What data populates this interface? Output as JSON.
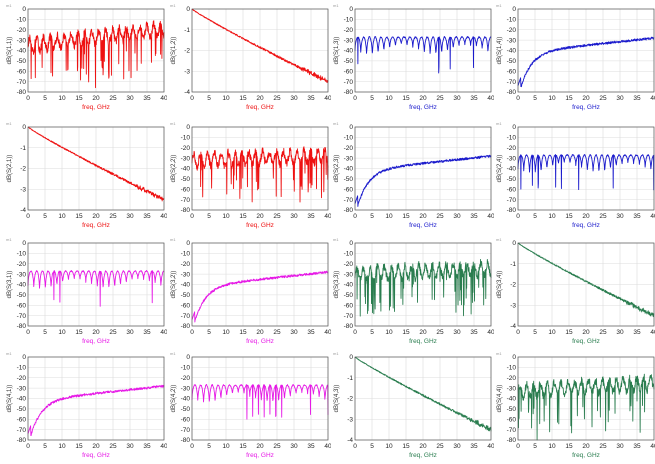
{
  "colors": {
    "red": "#ee1111",
    "blue": "#1a1acc",
    "magenta": "#e619e6",
    "green": "#2a7d4f"
  },
  "marker_tag": "m1",
  "chart_data": [
    {
      "type": "line",
      "id": "S11",
      "ylabel": "dB(S(1,1))",
      "xlabel": "freq, GHz",
      "color": "red",
      "xlim": [
        0,
        40
      ],
      "ylim": [
        -80,
        0
      ],
      "xticks": [
        0,
        5,
        10,
        15,
        20,
        25,
        30,
        35,
        40
      ],
      "yticks": [
        0,
        -10,
        -20,
        -30,
        -40,
        -50,
        -60,
        -70,
        -80
      ],
      "pattern": "reflection",
      "start": -35,
      "end": -20
    },
    {
      "type": "line",
      "id": "S12",
      "ylabel": "dB(S(1,2))",
      "xlabel": "freq, GHz",
      "color": "red",
      "xlim": [
        0,
        40
      ],
      "ylim": [
        -4,
        0
      ],
      "xticks": [
        0,
        5,
        10,
        15,
        20,
        25,
        30,
        35,
        40
      ],
      "yticks": [
        0,
        -1,
        -2,
        -3,
        -4
      ],
      "pattern": "insertion",
      "start": 0,
      "end": -3.5
    },
    {
      "type": "line",
      "id": "S13",
      "ylabel": "dB(S(1,3))",
      "xlabel": "freq, GHz",
      "color": "blue",
      "xlim": [
        0,
        40
      ],
      "ylim": [
        -80,
        0
      ],
      "xticks": [
        0,
        5,
        10,
        15,
        20,
        25,
        30,
        35,
        40
      ],
      "yticks": [
        0,
        -10,
        -20,
        -30,
        -40,
        -50,
        -60,
        -70,
        -80
      ],
      "pattern": "scallop",
      "start": -30,
      "end": -30
    },
    {
      "type": "line",
      "id": "S14",
      "ylabel": "dB(S(1,4))",
      "xlabel": "freq, GHz",
      "color": "blue",
      "xlim": [
        0,
        40
      ],
      "ylim": [
        -80,
        0
      ],
      "xticks": [
        0,
        5,
        10,
        15,
        20,
        25,
        30,
        35,
        40
      ],
      "yticks": [
        0,
        -10,
        -20,
        -30,
        -40,
        -50,
        -60,
        -70,
        -80
      ],
      "pattern": "rising",
      "start": -75,
      "end": -28
    },
    {
      "type": "line",
      "id": "S21",
      "ylabel": "dB(S(2,1))",
      "xlabel": "freq, GHz",
      "color": "red",
      "xlim": [
        0,
        40
      ],
      "ylim": [
        -4,
        0
      ],
      "xticks": [
        0,
        5,
        10,
        15,
        20,
        25,
        30,
        35,
        40
      ],
      "yticks": [
        0,
        -1,
        -2,
        -3,
        -4
      ],
      "pattern": "insertion",
      "start": 0,
      "end": -3.5
    },
    {
      "type": "line",
      "id": "S22",
      "ylabel": "dB(S(2,2))",
      "xlabel": "freq, GHz",
      "color": "red",
      "xlim": [
        0,
        40
      ],
      "ylim": [
        -80,
        0
      ],
      "xticks": [
        0,
        5,
        10,
        15,
        20,
        25,
        30,
        35,
        40
      ],
      "yticks": [
        0,
        -10,
        -20,
        -30,
        -40,
        -50,
        -60,
        -70,
        -80
      ],
      "pattern": "reflection",
      "start": -32,
      "end": -28
    },
    {
      "type": "line",
      "id": "S23",
      "ylabel": "dB(S(2,3))",
      "xlabel": "freq, GHz",
      "color": "blue",
      "xlim": [
        0,
        40
      ],
      "ylim": [
        -80,
        0
      ],
      "xticks": [
        0,
        5,
        10,
        15,
        20,
        25,
        30,
        35,
        40
      ],
      "yticks": [
        0,
        -10,
        -20,
        -30,
        -40,
        -50,
        -60,
        -70,
        -80
      ],
      "pattern": "rising",
      "start": -75,
      "end": -30
    },
    {
      "type": "line",
      "id": "S24",
      "ylabel": "dB(S(2,4))",
      "xlabel": "freq, GHz",
      "color": "blue",
      "xlim": [
        0,
        40
      ],
      "ylim": [
        -80,
        0
      ],
      "xticks": [
        0,
        5,
        10,
        15,
        20,
        25,
        30,
        35,
        40
      ],
      "yticks": [
        0,
        -10,
        -20,
        -30,
        -40,
        -50,
        -60,
        -70,
        -80
      ],
      "pattern": "scallop",
      "start": -30,
      "end": -30
    },
    {
      "type": "line",
      "id": "S31",
      "ylabel": "dB(S(3,1))",
      "xlabel": "freq, GHz",
      "color": "magenta",
      "xlim": [
        0,
        40
      ],
      "ylim": [
        -80,
        0
      ],
      "xticks": [
        0,
        5,
        10,
        15,
        20,
        25,
        30,
        35,
        40
      ],
      "yticks": [
        0,
        -10,
        -20,
        -30,
        -40,
        -50,
        -60,
        -70,
        -80
      ],
      "pattern": "scallop",
      "start": -30,
      "end": -30
    },
    {
      "type": "line",
      "id": "S32",
      "ylabel": "dB(S(3,2))",
      "xlabel": "freq, GHz",
      "color": "magenta",
      "xlim": [
        0,
        40
      ],
      "ylim": [
        -80,
        0
      ],
      "xticks": [
        0,
        5,
        10,
        15,
        20,
        25,
        30,
        35,
        40
      ],
      "yticks": [
        0,
        -10,
        -20,
        -30,
        -40,
        -50,
        -60,
        -70,
        -80
      ],
      "pattern": "rising",
      "start": -75,
      "end": -30
    },
    {
      "type": "line",
      "id": "S33",
      "ylabel": "dB(S(3,3))",
      "xlabel": "freq, GHz",
      "color": "green",
      "xlim": [
        0,
        40
      ],
      "ylim": [
        -80,
        0
      ],
      "xticks": [
        0,
        5,
        10,
        15,
        20,
        25,
        30,
        35,
        40
      ],
      "yticks": [
        0,
        -10,
        -20,
        -30,
        -40,
        -50,
        -60,
        -70,
        -80
      ],
      "pattern": "reflection",
      "start": -30,
      "end": -25
    },
    {
      "type": "line",
      "id": "S34",
      "ylabel": "dB(S(3,4))",
      "xlabel": "freq, GHz",
      "color": "green",
      "xlim": [
        0,
        40
      ],
      "ylim": [
        -4,
        0
      ],
      "xticks": [
        0,
        5,
        10,
        15,
        20,
        25,
        30,
        35,
        40
      ],
      "yticks": [
        0,
        -1,
        -2,
        -3,
        -4
      ],
      "pattern": "insertion",
      "start": 0,
      "end": -3.5
    },
    {
      "type": "line",
      "id": "S41",
      "ylabel": "dB(S(4,1))",
      "xlabel": "freq, GHz",
      "color": "magenta",
      "xlim": [
        0,
        40
      ],
      "ylim": [
        -80,
        0
      ],
      "xticks": [
        0,
        5,
        10,
        15,
        20,
        25,
        30,
        35,
        40
      ],
      "yticks": [
        0,
        -10,
        -20,
        -30,
        -40,
        -50,
        -60,
        -70,
        -80
      ],
      "pattern": "rising",
      "start": -75,
      "end": -28
    },
    {
      "type": "line",
      "id": "S42",
      "ylabel": "dB(S(4,2))",
      "xlabel": "freq, GHz",
      "color": "magenta",
      "xlim": [
        0,
        40
      ],
      "ylim": [
        -80,
        0
      ],
      "xticks": [
        0,
        5,
        10,
        15,
        20,
        25,
        30,
        35,
        40
      ],
      "yticks": [
        0,
        -10,
        -20,
        -30,
        -40,
        -50,
        -60,
        -70,
        -80
      ],
      "pattern": "scallop",
      "start": -30,
      "end": -30
    },
    {
      "type": "line",
      "id": "S43",
      "ylabel": "dB(S(4,3))",
      "xlabel": "freq, GHz",
      "color": "green",
      "xlim": [
        0,
        40
      ],
      "ylim": [
        -4,
        0
      ],
      "xticks": [
        0,
        5,
        10,
        15,
        20,
        25,
        30,
        35,
        40
      ],
      "yticks": [
        0,
        -1,
        -2,
        -3,
        -4
      ],
      "pattern": "insertion",
      "start": 0,
      "end": -3.5
    },
    {
      "type": "line",
      "id": "S44",
      "ylabel": "dB(S(4,4))",
      "xlabel": "freq, GHz",
      "color": "green",
      "xlim": [
        0,
        40
      ],
      "ylim": [
        -80,
        0
      ],
      "xticks": [
        0,
        5,
        10,
        15,
        20,
        25,
        30,
        35,
        40
      ],
      "yticks": [
        0,
        -10,
        -20,
        -30,
        -40,
        -50,
        -60,
        -70,
        -80
      ],
      "pattern": "reflection",
      "start": -33,
      "end": -25
    }
  ]
}
